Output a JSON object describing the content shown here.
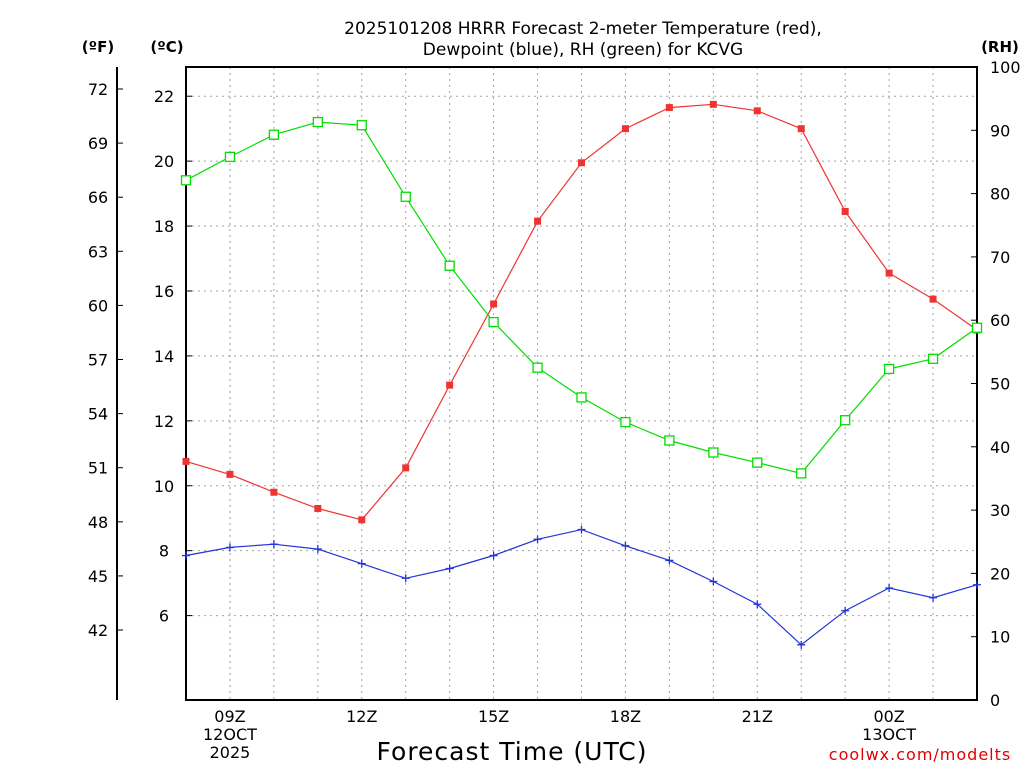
{
  "chart_data": {
    "type": "line",
    "title_line1": "2025101208 HRRR Forecast 2-meter Temperature (red),",
    "title_line2": "Dewpoint (blue), RH (green) for KCVG",
    "xlabel": "Forecast Time (UTC)",
    "credit": "coolwx.com/modelts",
    "units": {
      "fahrenheit": "(ºF)",
      "celsius": "(ºC)",
      "rh": "(RH)"
    },
    "x_hours": [
      8,
      9,
      10,
      11,
      12,
      13,
      14,
      15,
      16,
      17,
      18,
      19,
      20,
      21,
      22,
      23,
      24,
      25,
      26
    ],
    "xlim": [
      8,
      26
    ],
    "x_ticks": [
      {
        "hour": 9,
        "lines": [
          "09Z",
          "12OCT",
          "2025"
        ]
      },
      {
        "hour": 12,
        "lines": [
          "12Z"
        ]
      },
      {
        "hour": 15,
        "lines": [
          "15Z"
        ]
      },
      {
        "hour": 18,
        "lines": [
          "18Z"
        ]
      },
      {
        "hour": 21,
        "lines": [
          "21Z"
        ]
      },
      {
        "hour": 24,
        "lines": [
          "00Z",
          "13OCT"
        ]
      }
    ],
    "celsius_axis": {
      "ylim": [
        3.4,
        22.9
      ],
      "ticks": [
        6,
        8,
        10,
        12,
        14,
        16,
        18,
        20,
        22
      ]
    },
    "fahrenheit_axis": {
      "ticks": [
        42,
        45,
        48,
        51,
        54,
        57,
        60,
        63,
        66,
        69,
        72
      ]
    },
    "rh_axis": {
      "ylim": [
        0,
        100
      ],
      "ticks": [
        0,
        10,
        20,
        30,
        40,
        50,
        60,
        70,
        80,
        90,
        100
      ]
    },
    "series": [
      {
        "name": "2-meter Temperature",
        "axis": "celsius",
        "color": "#ee3333",
        "marker": "filled-square",
        "values": [
          10.75,
          10.35,
          9.8,
          9.3,
          8.95,
          10.55,
          13.1,
          15.6,
          18.15,
          19.95,
          21.0,
          21.65,
          21.75,
          21.55,
          21.0,
          18.45,
          16.55,
          15.75,
          14.8
        ]
      },
      {
        "name": "Dewpoint",
        "axis": "celsius",
        "color": "#2233dd",
        "marker": "plus",
        "values": [
          7.85,
          8.1,
          8.2,
          8.05,
          7.6,
          7.15,
          7.45,
          7.85,
          8.35,
          8.65,
          8.15,
          7.7,
          7.05,
          6.35,
          5.1,
          6.15,
          6.85,
          6.55,
          6.95
        ]
      },
      {
        "name": "RH",
        "axis": "rh",
        "color": "#00dd00",
        "marker": "open-square",
        "values": [
          82.1,
          85.8,
          89.3,
          91.3,
          90.8,
          79.5,
          68.6,
          59.7,
          52.5,
          47.8,
          43.9,
          41.0,
          39.1,
          37.5,
          35.8,
          44.2,
          52.3,
          53.9,
          58.8
        ]
      }
    ]
  }
}
